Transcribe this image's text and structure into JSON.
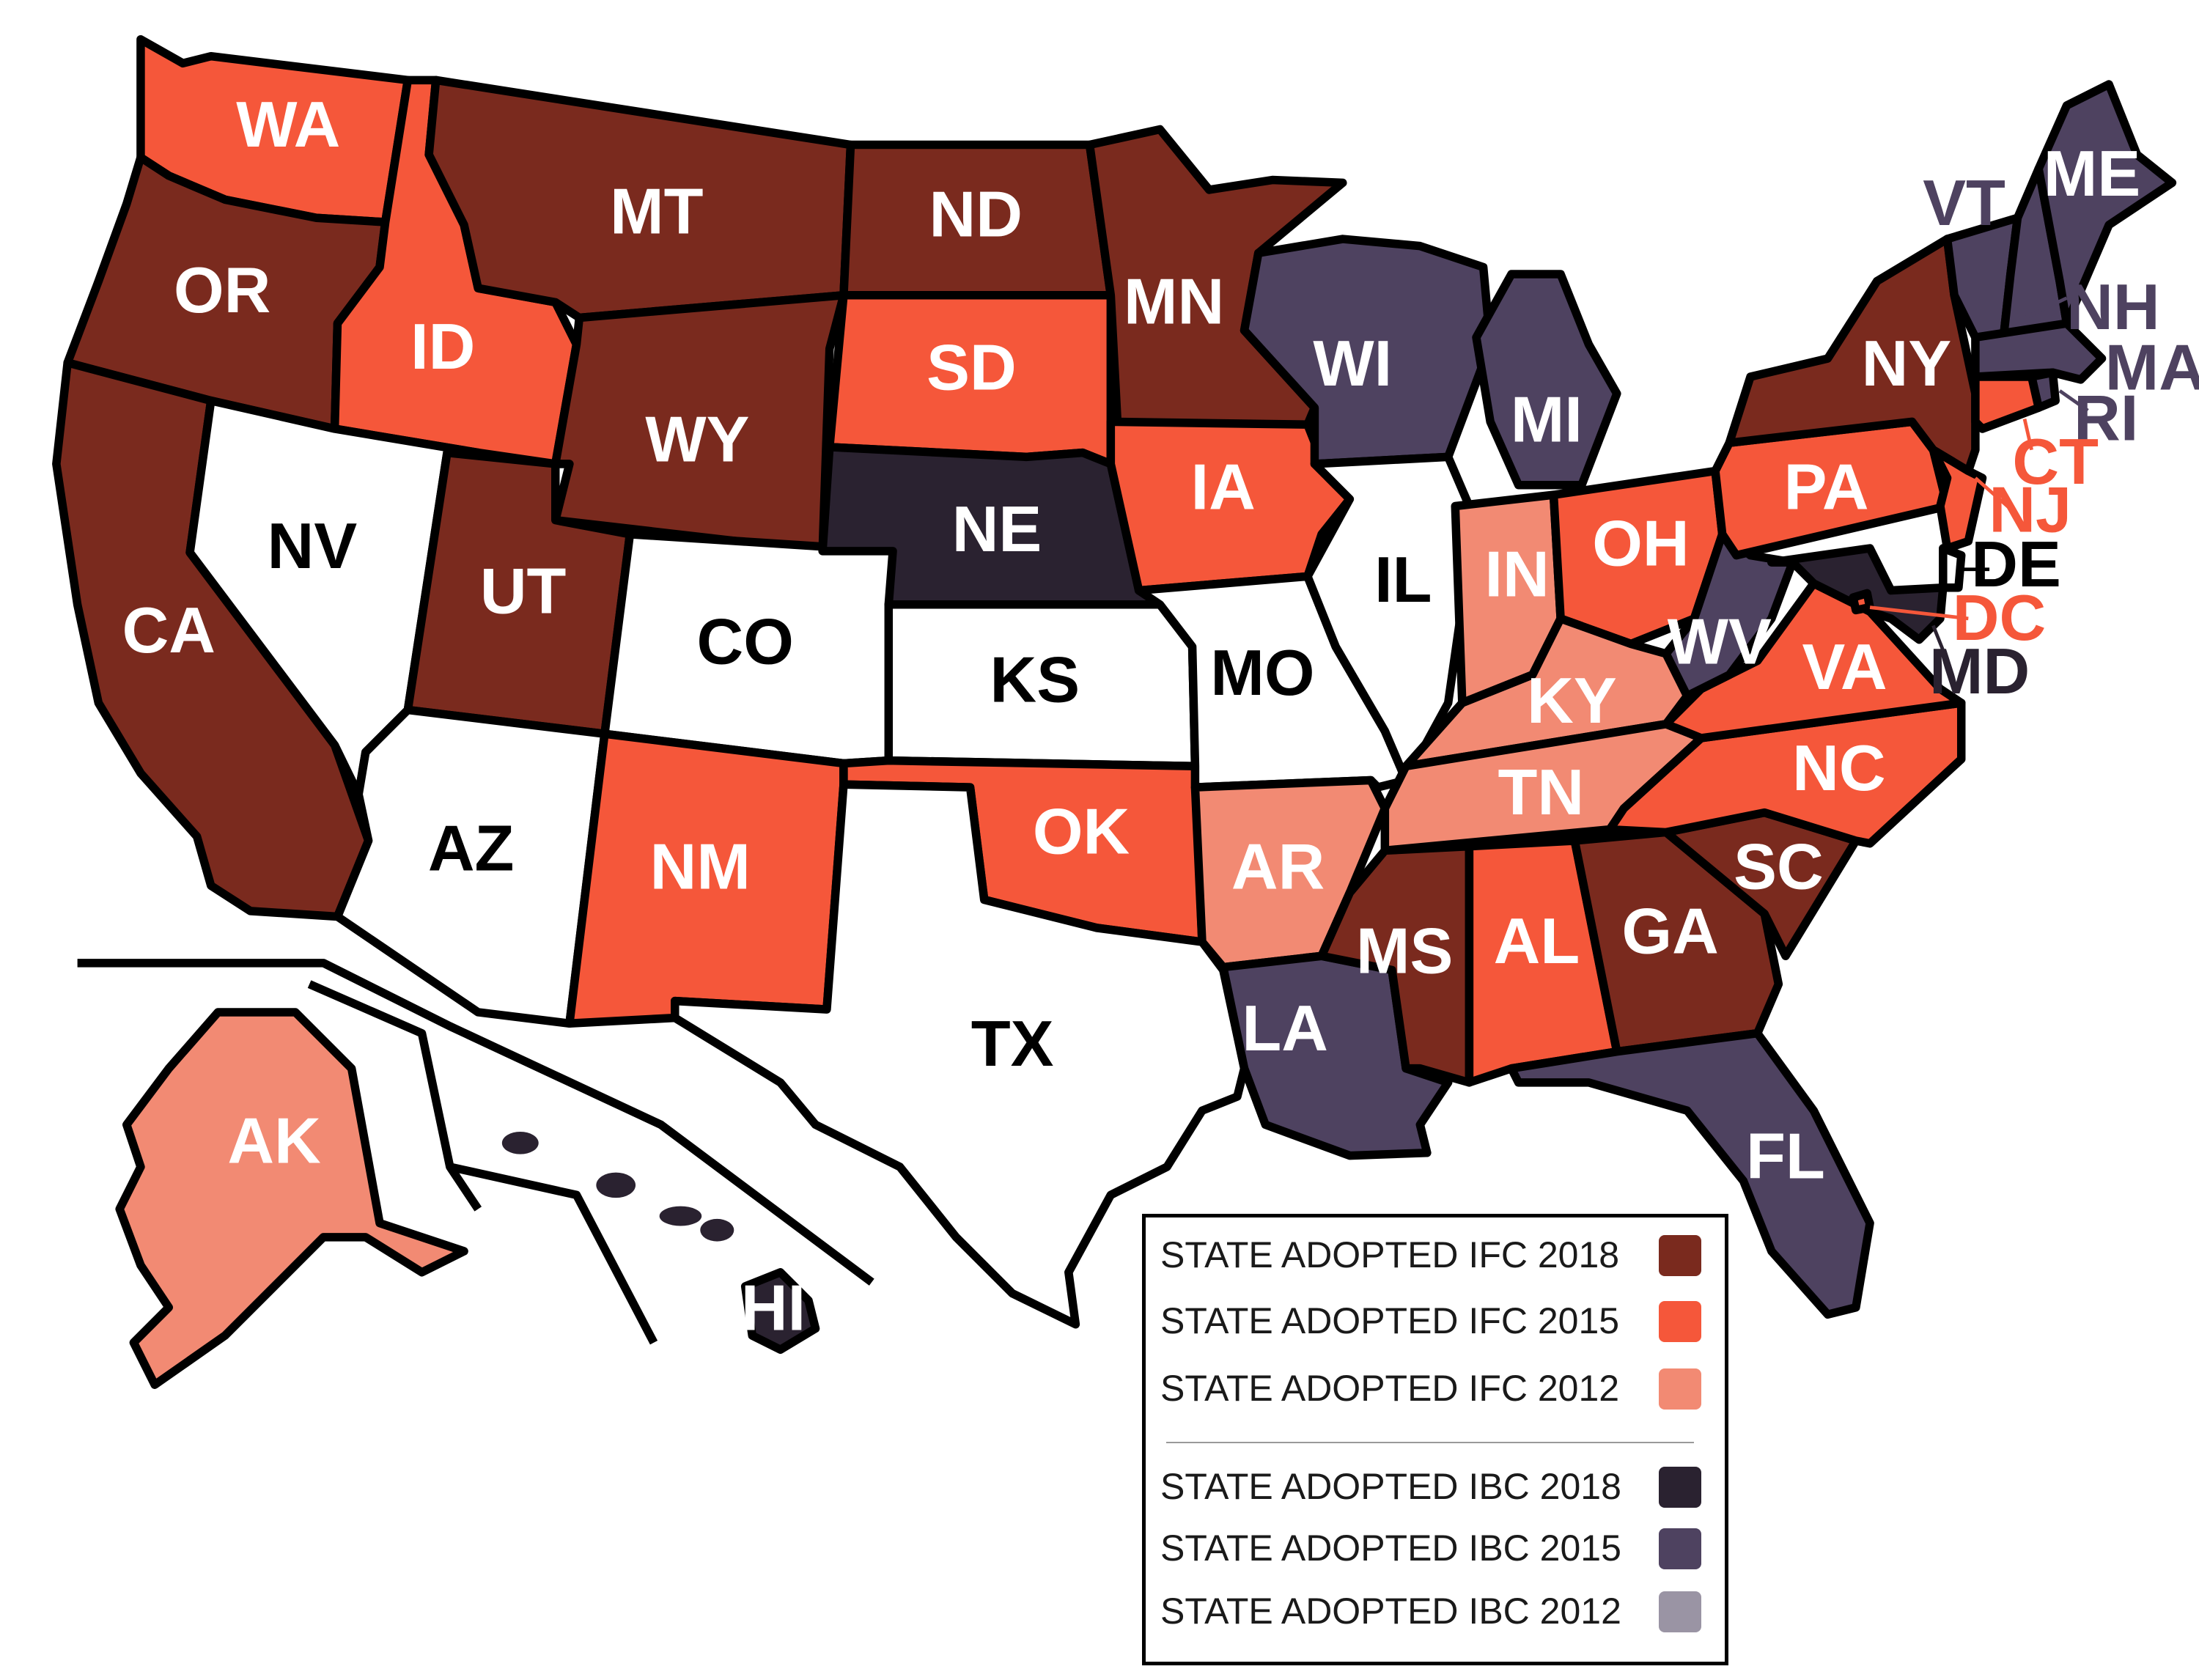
{
  "colors": {
    "ifc_2018": "#7a2a1e",
    "ifc_2015": "#f5573a",
    "ifc_2012": "#f28a73",
    "ibc_2018": "#2a2230",
    "ibc_2015": "#4e4260",
    "ibc_2012": "#9a94a4",
    "none": "#ffffff"
  },
  "legend": {
    "items": [
      {
        "label": "STATE ADOPTED IFC 2018",
        "color_key": "ifc_2018"
      },
      {
        "label": "STATE ADOPTED IFC 2015",
        "color_key": "ifc_2015"
      },
      {
        "label": "STATE ADOPTED IFC 2012",
        "color_key": "ifc_2012"
      },
      {
        "label": "STATE ADOPTED IBC 2018",
        "color_key": "ibc_2018"
      },
      {
        "label": "STATE ADOPTED IBC 2015",
        "color_key": "ibc_2015"
      },
      {
        "label": "STATE ADOPTED IBC 2012",
        "color_key": "ibc_2012"
      }
    ]
  },
  "states": [
    {
      "abbr": "WA",
      "category": "ifc_2015"
    },
    {
      "abbr": "OR",
      "category": "ifc_2018"
    },
    {
      "abbr": "CA",
      "category": "ifc_2018"
    },
    {
      "abbr": "ID",
      "category": "ifc_2015"
    },
    {
      "abbr": "NV",
      "category": "none"
    },
    {
      "abbr": "MT",
      "category": "ifc_2018"
    },
    {
      "abbr": "WY",
      "category": "ifc_2018"
    },
    {
      "abbr": "UT",
      "category": "ifc_2018"
    },
    {
      "abbr": "AZ",
      "category": "none"
    },
    {
      "abbr": "CO",
      "category": "none"
    },
    {
      "abbr": "NM",
      "category": "ifc_2015"
    },
    {
      "abbr": "ND",
      "category": "ifc_2018"
    },
    {
      "abbr": "SD",
      "category": "ifc_2015"
    },
    {
      "abbr": "NE",
      "category": "ibc_2018"
    },
    {
      "abbr": "KS",
      "category": "none"
    },
    {
      "abbr": "OK",
      "category": "ifc_2015"
    },
    {
      "abbr": "TX",
      "category": "none"
    },
    {
      "abbr": "MN",
      "category": "ifc_2018"
    },
    {
      "abbr": "IA",
      "category": "ifc_2015"
    },
    {
      "abbr": "MO",
      "category": "none"
    },
    {
      "abbr": "AR",
      "category": "ifc_2012"
    },
    {
      "abbr": "LA",
      "category": "ibc_2015"
    },
    {
      "abbr": "WI",
      "category": "ibc_2015"
    },
    {
      "abbr": "IL",
      "category": "none"
    },
    {
      "abbr": "MI",
      "category": "ibc_2015"
    },
    {
      "abbr": "IN",
      "category": "ifc_2012"
    },
    {
      "abbr": "OH",
      "category": "ifc_2015"
    },
    {
      "abbr": "KY",
      "category": "ifc_2012"
    },
    {
      "abbr": "TN",
      "category": "ifc_2012"
    },
    {
      "abbr": "MS",
      "category": "ifc_2018"
    },
    {
      "abbr": "AL",
      "category": "ifc_2015"
    },
    {
      "abbr": "GA",
      "category": "ifc_2018"
    },
    {
      "abbr": "FL",
      "category": "ibc_2015"
    },
    {
      "abbr": "SC",
      "category": "ifc_2018"
    },
    {
      "abbr": "NC",
      "category": "ifc_2015"
    },
    {
      "abbr": "VA",
      "category": "ifc_2015"
    },
    {
      "abbr": "WV",
      "category": "ibc_2015"
    },
    {
      "abbr": "PA",
      "category": "ifc_2015"
    },
    {
      "abbr": "NY",
      "category": "ifc_2018"
    },
    {
      "abbr": "VT",
      "category": "ibc_2015"
    },
    {
      "abbr": "NH",
      "category": "ibc_2015"
    },
    {
      "abbr": "ME",
      "category": "ibc_2015"
    },
    {
      "abbr": "MA",
      "category": "ibc_2015"
    },
    {
      "abbr": "RI",
      "category": "ibc_2015"
    },
    {
      "abbr": "CT",
      "category": "ifc_2015"
    },
    {
      "abbr": "NJ",
      "category": "ifc_2015"
    },
    {
      "abbr": "DE",
      "category": "none"
    },
    {
      "abbr": "MD",
      "category": "ibc_2018"
    },
    {
      "abbr": "DC",
      "category": "ifc_2015"
    },
    {
      "abbr": "AK",
      "category": "ifc_2012"
    },
    {
      "abbr": "HI",
      "category": "ibc_2018"
    }
  ]
}
